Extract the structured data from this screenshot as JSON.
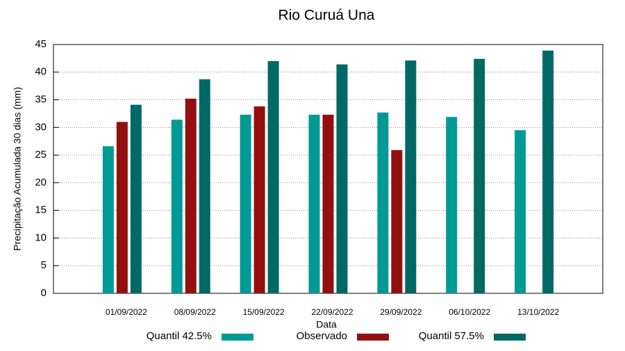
{
  "chart_data": {
    "type": "bar",
    "title": "Rio Curuá Una",
    "x_label": "Data",
    "y_label": "Precipitação Acumulada 30 dias (mm)",
    "categories": [
      "01/09/2022",
      "08/09/2022",
      "15/09/2022",
      "22/09/2022",
      "29/09/2022",
      "06/10/2022",
      "13/10/2022"
    ],
    "series": [
      {
        "name": "Quantil 42.5%",
        "color": "#009a96",
        "values": [
          26.6,
          31.4,
          32.3,
          32.3,
          32.7,
          31.9,
          29.5
        ]
      },
      {
        "name": "Observado",
        "color": "#941010",
        "values": [
          31.0,
          35.2,
          33.8,
          32.3,
          25.9,
          null,
          null
        ]
      },
      {
        "name": "Quantil 57.5%",
        "color": "#006965",
        "values": [
          34.1,
          38.7,
          42.0,
          41.4,
          42.1,
          42.4,
          43.9
        ]
      }
    ],
    "ylim": [
      0,
      45
    ],
    "yticks": [
      0,
      5,
      10,
      15,
      20,
      25,
      30,
      35,
      40,
      45
    ],
    "grid": true,
    "legend": "bottom"
  }
}
